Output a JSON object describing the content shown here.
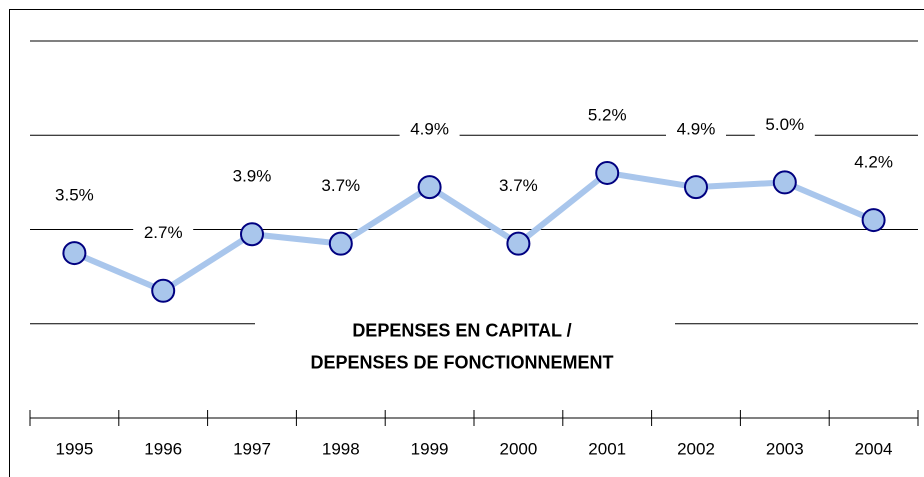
{
  "chart_data": {
    "type": "line",
    "title": [
      "DEPENSES EN CAPITAL /",
      "DEPENSES DE FONCTIONNEMENT"
    ],
    "categories": [
      "1995",
      "1996",
      "1997",
      "1998",
      "1999",
      "2000",
      "2001",
      "2002",
      "2003",
      "2004"
    ],
    "series": [
      {
        "color": "#a9c6ec",
        "values": [
          3.5,
          2.7,
          3.9,
          3.7,
          4.9,
          3.7,
          5.2,
          4.9,
          5.0,
          4.2
        ],
        "value_labels": [
          "3.5%",
          "2.7%",
          "3.9%",
          "3.7%",
          "4.9%",
          "3.7%",
          "5.2%",
          "4.9%",
          "5.0%",
          "4.2%"
        ]
      }
    ],
    "marker_edge_color": "#000080",
    "ylim": [
      0,
      8
    ],
    "yticks": [
      2,
      4,
      6,
      8
    ],
    "grid": true
  }
}
